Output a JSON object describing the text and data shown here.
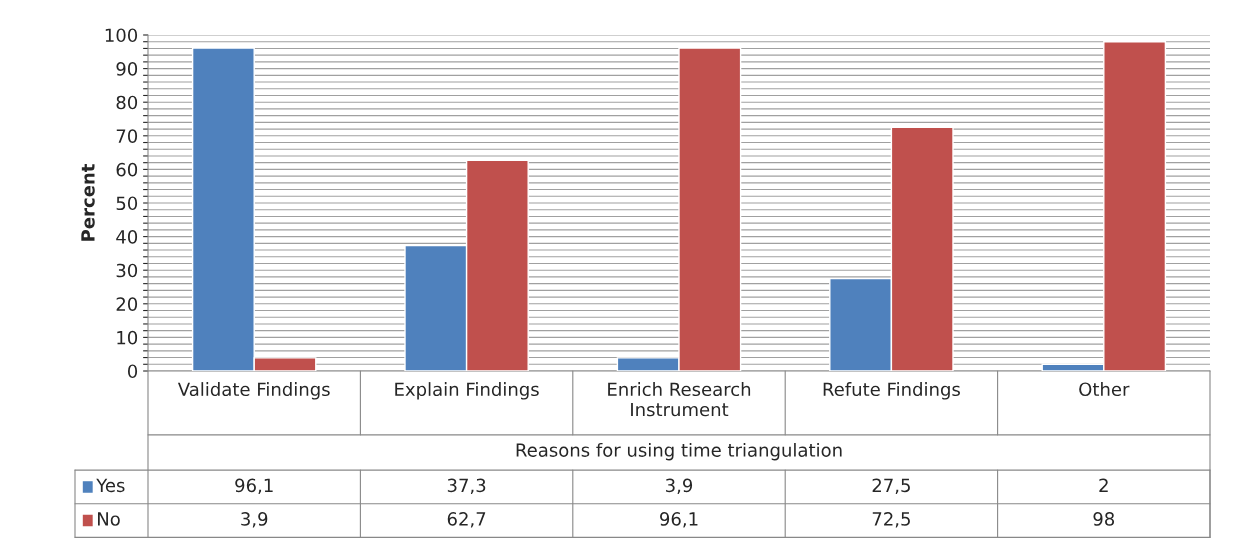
{
  "chart_data": {
    "type": "bar",
    "categories": [
      "Validate Findings",
      "Explain Findings",
      "Enrich Research\nInstrument",
      "Refute Findings",
      "Other"
    ],
    "xlabel": "Reasons for using time triangulation",
    "ylabel": "Percent",
    "series": [
      {
        "name": "Yes",
        "color": "#4f81bd",
        "values": [
          96.1,
          37.3,
          3.9,
          27.5,
          2
        ],
        "value_labels": [
          "96,1",
          "37,3",
          "3,9",
          "27,5",
          "2"
        ]
      },
      {
        "name": "No",
        "color": "#c0504d",
        "values": [
          3.9,
          62.7,
          96.1,
          72.5,
          98
        ],
        "value_labels": [
          "3,9",
          "62,7",
          "96,1",
          "72,5",
          "98"
        ]
      }
    ],
    "ylim": [
      0,
      100
    ],
    "yticks": [
      0,
      {
        "value": 2,
        "label": null
      },
      {
        "value": 4,
        "label": null
      },
      {
        "value": 6,
        "label": null
      },
      {
        "value": 8,
        "label": null
      },
      10,
      {
        "value": 12,
        "label": null
      },
      {
        "value": 14,
        "label": null
      },
      {
        "value": 16,
        "label": null
      },
      {
        "value": 18,
        "label": null
      },
      20,
      {
        "value": 22,
        "label": null
      },
      {
        "value": 24,
        "label": null
      },
      {
        "value": 26,
        "label": null
      },
      {
        "value": 28,
        "label": null
      },
      30,
      {
        "value": 32,
        "label": null
      },
      {
        "value": 34,
        "label": null
      },
      {
        "value": 36,
        "label": null
      },
      {
        "value": 38,
        "label": null
      },
      40,
      {
        "value": 42,
        "label": null
      },
      {
        "value": 44,
        "label": null
      },
      {
        "value": 46,
        "label": null
      },
      {
        "value": 48,
        "label": null
      },
      50,
      {
        "value": 52,
        "label": null
      },
      {
        "value": 54,
        "label": null
      },
      {
        "value": 56,
        "label": null
      },
      {
        "value": 58,
        "label": null
      },
      60,
      {
        "value": 62,
        "label": null
      },
      {
        "value": 64,
        "label": null
      },
      {
        "value": 66,
        "label": null
      },
      {
        "value": 68,
        "label": null
      },
      70,
      {
        "value": 72,
        "label": null
      },
      {
        "value": 74,
        "label": null
      },
      {
        "value": 76,
        "label": null
      },
      {
        "value": 78,
        "label": null
      },
      80,
      {
        "value": 82,
        "label": null
      },
      {
        "value": 84,
        "label": null
      },
      {
        "value": 86,
        "label": null
      },
      {
        "value": 88,
        "label": null
      },
      90,
      {
        "value": 92,
        "label": null
      },
      {
        "value": 94,
        "label": null
      },
      {
        "value": 96,
        "label": null
      },
      {
        "value": 98,
        "label": null
      },
      100
    ],
    "grid": "y",
    "legend": "bottom left"
  }
}
